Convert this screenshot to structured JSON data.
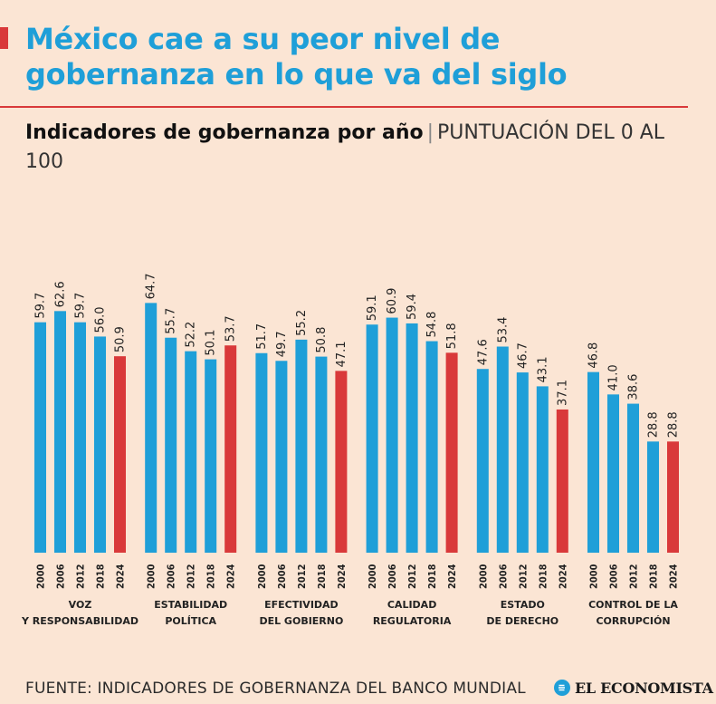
{
  "header": {
    "title": "México cae a su peor nivel de gobernanza en lo que va del siglo",
    "subtitle_strong": "Indicadores de gobernanza por año",
    "subtitle_separator": "|",
    "subtitle_unit": "PUNTUACIÓN DEL 0 AL 100"
  },
  "footer": {
    "source": "FUENTE: INDICADORES DE GOBERNANZA DEL BANCO MUNDIAL",
    "logo_text": "EL ECONOMISTA"
  },
  "colors": {
    "background": "#fbe5d4",
    "title": "#1f9fd8",
    "bar_default": "#1f9fd8",
    "bar_highlight": "#d9393a",
    "accent": "#d9393a"
  },
  "chart_data": {
    "type": "bar",
    "x": [
      "2000",
      "2006",
      "2012",
      "2018",
      "2024"
    ],
    "highlight_year": "2024",
    "ylim": [
      0,
      100
    ],
    "grid": false,
    "groups": [
      {
        "label": [
          "VOZ",
          "Y RESPONSABILIDAD"
        ],
        "values": [
          59.7,
          62.6,
          59.7,
          56.0,
          50.9
        ]
      },
      {
        "label": [
          "ESTABILIDAD",
          "POLÍTICA"
        ],
        "values": [
          64.7,
          55.7,
          52.2,
          50.1,
          53.7
        ]
      },
      {
        "label": [
          "EFECTIVIDAD",
          "DEL GOBIERNO"
        ],
        "values": [
          51.7,
          49.7,
          55.2,
          50.8,
          47.1
        ]
      },
      {
        "label": [
          "CALIDAD",
          "REGULATORIA"
        ],
        "values": [
          59.1,
          60.9,
          59.4,
          54.8,
          51.8
        ]
      },
      {
        "label": [
          "ESTADO",
          "DE DERECHO"
        ],
        "values": [
          47.6,
          53.4,
          46.7,
          43.1,
          37.1
        ]
      },
      {
        "label": [
          "CONTROL DE LA",
          "CORRUPCIÓN"
        ],
        "values": [
          46.8,
          41.0,
          38.6,
          28.8,
          28.8
        ]
      }
    ]
  }
}
